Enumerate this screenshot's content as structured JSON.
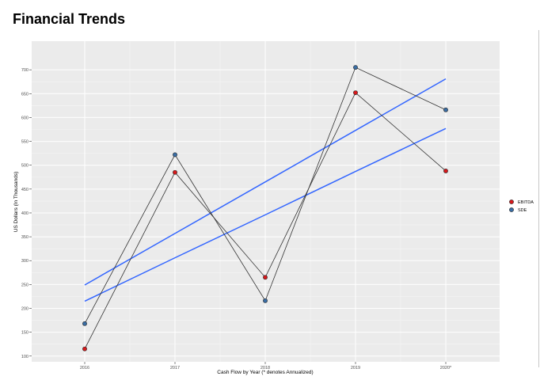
{
  "page": {
    "title": "Financial Trends"
  },
  "chart_data": {
    "type": "line",
    "title": "",
    "xlabel": "Cash Flow by Year (* denotes Annualized)",
    "ylabel": "US Dollars (In Thousands)",
    "categories": [
      "2016",
      "2017",
      "2018",
      "2019",
      "2020*"
    ],
    "ylim": [
      88,
      760
    ],
    "yticks": [
      100,
      150,
      200,
      250,
      300,
      350,
      400,
      450,
      500,
      550,
      600,
      650,
      700
    ],
    "grid": true,
    "legend_position": "right",
    "series": [
      {
        "name": "EBITDA",
        "color": "#d7191c",
        "values": [
          115,
          485,
          265,
          652,
          488
        ],
        "trend": [
          215,
          306,
          396,
          487,
          577
        ]
      },
      {
        "name": "SDE",
        "color": "#3a6ea5",
        "values": [
          168,
          522,
          216,
          705,
          616
        ],
        "trend": [
          249,
          357,
          465,
          573,
          681
        ]
      }
    ],
    "trend_color": "#3366ff",
    "connector_color": "#333333"
  }
}
